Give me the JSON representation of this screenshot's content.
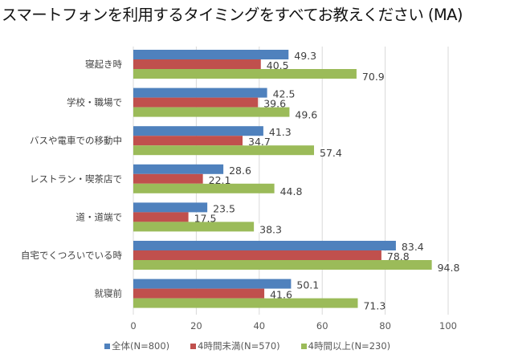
{
  "chart_data": {
    "type": "bar",
    "orientation": "horizontal",
    "title": "スマートフォンを利用するタイミングをすべてお教えください (MA)",
    "xlabel": "",
    "ylabel": "",
    "xlim": [
      0,
      100
    ],
    "xticks": [
      "0",
      "20",
      "40",
      "60",
      "80",
      "100"
    ],
    "grid": true,
    "legend_position": "bottom",
    "categories": [
      "寝起き時",
      "学校・職場で",
      "バスや電車での移動中",
      "レストラン・喫茶店で",
      "道・道端で",
      "自宅でくつろいでいる時",
      "就寝前"
    ],
    "series": [
      {
        "name": "全体(N=800)",
        "color": "#4f81bd",
        "values": [
          49.3,
          42.5,
          41.3,
          28.6,
          23.5,
          83.4,
          50.1
        ]
      },
      {
        "name": "4時間未満(N=570)",
        "color": "#c0504d",
        "values": [
          40.5,
          39.6,
          34.7,
          22.1,
          17.5,
          78.8,
          41.6
        ]
      },
      {
        "name": "4時間以上(N=230)",
        "color": "#9bbb59",
        "values": [
          70.9,
          49.6,
          57.4,
          44.8,
          38.3,
          94.8,
          71.3
        ]
      }
    ]
  }
}
